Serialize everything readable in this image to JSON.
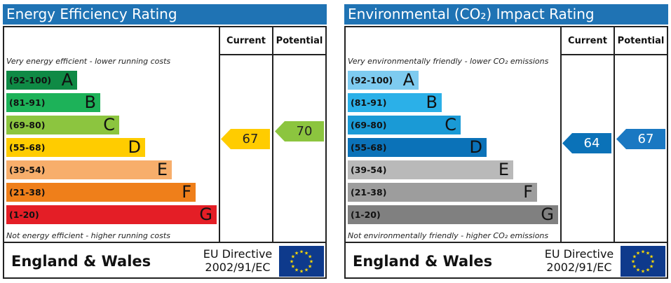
{
  "panels": {
    "energy": {
      "title": "Energy Efficiency Rating",
      "col_current": "Current",
      "col_potential": "Potential",
      "top_note": "Very energy efficient - lower running costs",
      "bottom_note": "Not energy efficient - higher running costs",
      "bands": [
        {
          "range": "(92-100)",
          "letter": "A",
          "color": "#0f8a45"
        },
        {
          "range": "(81-91)",
          "letter": "B",
          "color": "#1db259"
        },
        {
          "range": "(69-80)",
          "letter": "C",
          "color": "#8cc53f"
        },
        {
          "range": "(55-68)",
          "letter": "D",
          "color": "#ffcc00"
        },
        {
          "range": "(39-54)",
          "letter": "E",
          "color": "#f7ae6b"
        },
        {
          "range": "(21-38)",
          "letter": "F",
          "color": "#ef7f1a"
        },
        {
          "range": "(1-20)",
          "letter": "G",
          "color": "#e41e26"
        }
      ],
      "current": {
        "value": "67",
        "color": "#ffcc00",
        "text_color": "#222222"
      },
      "potential": {
        "value": "70",
        "color": "#8cc53f",
        "text_color": "#222222"
      },
      "footer_region": "England & Wales",
      "directive_line1": "EU Directive",
      "directive_line2": "2002/91/EC"
    },
    "environment": {
      "title": "Environmental (CO₂) Impact Rating",
      "col_current": "Current",
      "col_potential": "Potential",
      "top_note": "Very environmentally friendly - lower CO₂ emissions",
      "bottom_note": "Not environmentally friendly - higher CO₂ emissions",
      "bands": [
        {
          "range": "(92-100)",
          "letter": "A",
          "color": "#7ecbf0"
        },
        {
          "range": "(81-91)",
          "letter": "B",
          "color": "#2bb0e8"
        },
        {
          "range": "(69-80)",
          "letter": "C",
          "color": "#1a9ad6"
        },
        {
          "range": "(55-68)",
          "letter": "D",
          "color": "#0b72b8"
        },
        {
          "range": "(39-54)",
          "letter": "E",
          "color": "#b9b9b9"
        },
        {
          "range": "(21-38)",
          "letter": "F",
          "color": "#9d9d9d"
        },
        {
          "range": "(1-20)",
          "letter": "G",
          "color": "#808080"
        }
      ],
      "current": {
        "value": "64",
        "color": "#0b72b8",
        "text_color": "#ffffff"
      },
      "potential": {
        "value": "67",
        "color": "#1a78c2",
        "text_color": "#ffffff"
      },
      "footer_region": "England & Wales",
      "directive_line1": "EU Directive",
      "directive_line2": "2002/91/EC"
    }
  }
}
